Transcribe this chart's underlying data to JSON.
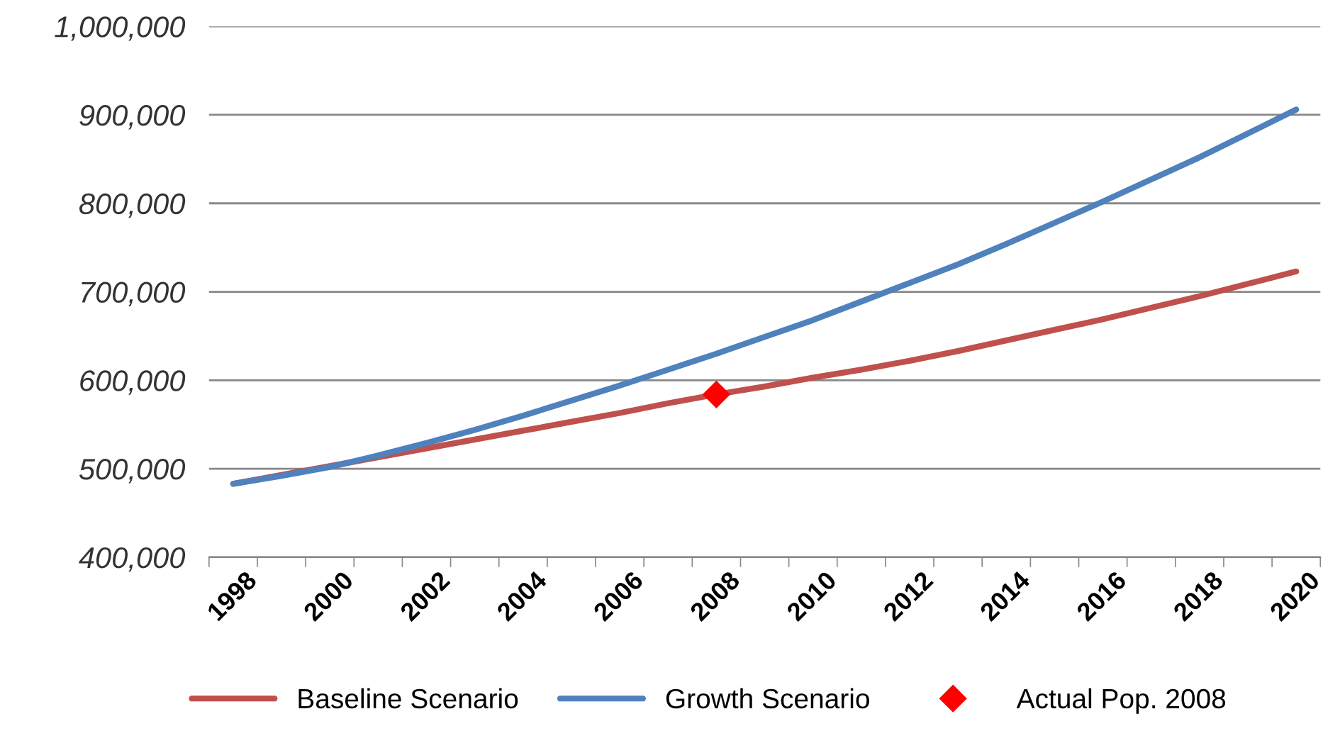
{
  "chart_data": {
    "type": "line",
    "categories": [
      "1998",
      null,
      "2000",
      null,
      "2002",
      null,
      "2004",
      null,
      "2006",
      null,
      "2008",
      null,
      "2010",
      null,
      "2012",
      null,
      "2014",
      null,
      "2016",
      null,
      "2018",
      null,
      "2020"
    ],
    "series": [
      {
        "name": "Baseline Scenario",
        "color": "#c0504d",
        "values": [
          483000,
          493000,
          503000,
          513000,
          523000,
          533000,
          543000,
          553000,
          563000,
          574000,
          584000,
          593000,
          603000,
          612000,
          622000,
          633000,
          645000,
          657000,
          669000,
          682000,
          695000,
          709000,
          723000
        ]
      },
      {
        "name": "Growth Scenario",
        "color": "#4f81bd",
        "values": [
          483000,
          492000,
          502000,
          515000,
          529000,
          544000,
          560000,
          577000,
          594000,
          612000,
          630000,
          649000,
          668000,
          689000,
          710000,
          731000,
          754000,
          778000,
          802000,
          827000,
          852000,
          879000,
          906000
        ]
      },
      {
        "name": "Actual Pop. 2008",
        "type": "scatter",
        "marker": "diamond",
        "color": "#ff0000",
        "values": [
          null,
          null,
          null,
          null,
          null,
          null,
          null,
          null,
          null,
          null,
          584000,
          null,
          null,
          null,
          null,
          null,
          null,
          null,
          null,
          null,
          null,
          null,
          null
        ]
      }
    ],
    "ylim": [
      400000,
      1000000
    ],
    "yticks": [
      {
        "value": 400000,
        "label": "400,000"
      },
      {
        "value": 500000,
        "label": "500,000"
      },
      {
        "value": 600000,
        "label": "600,000"
      },
      {
        "value": 700000,
        "label": "700,000"
      },
      {
        "value": 800000,
        "label": "800,000"
      },
      {
        "value": 900000,
        "label": "900,000"
      },
      {
        "value": 1000000,
        "label": "1,000,000"
      }
    ],
    "grid": "y",
    "legend": "bottom",
    "marker": "none",
    "line_style": "solid"
  }
}
